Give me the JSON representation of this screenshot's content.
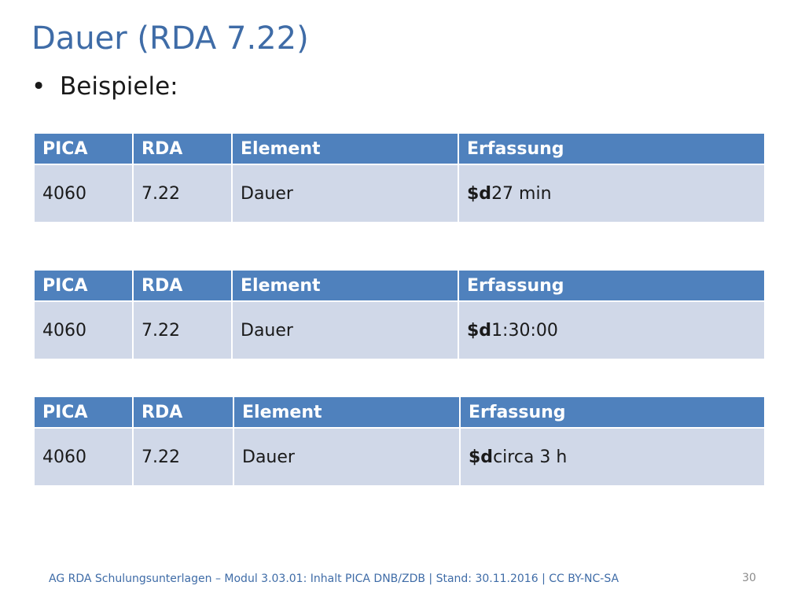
{
  "slide": {
    "title": "Dauer (RDA 7.22)",
    "bullet_symbol": "•",
    "bullet_text": "Beispiele:"
  },
  "tables": [
    {
      "headers": [
        "PICA",
        "RDA",
        "Element",
        "Erfassung"
      ],
      "row": {
        "pica": "4060",
        "rda": "7.22",
        "element": "Dauer",
        "subfield": "$d",
        "value": "27 min"
      }
    },
    {
      "headers": [
        "PICA",
        "RDA",
        "Element",
        "Erfassung"
      ],
      "row": {
        "pica": "4060",
        "rda": "7.22",
        "element": "Dauer",
        "subfield": "$d",
        "value": "1:30:00"
      }
    },
    {
      "headers": [
        "PICA",
        "RDA",
        "Element",
        "Erfassung"
      ],
      "row": {
        "pica": "4060",
        "rda": "7.22",
        "element": "Dauer",
        "subfield": "$d",
        "value": "circa 3 h"
      }
    }
  ],
  "footer": {
    "text": "AG RDA Schulungsunterlagen – Modul 3.03.01: Inhalt PICA DNB/ZDB | Stand: 30.11.2016 | CC BY-NC-SA",
    "page_number": "30"
  },
  "colors": {
    "title": "#3F6CA7",
    "header_bg": "#4F81BD",
    "row_bg": "#D0D8E8"
  }
}
